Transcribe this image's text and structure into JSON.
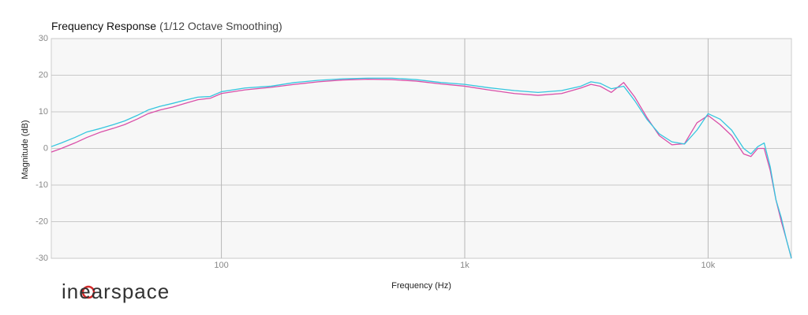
{
  "logo": "inearspace",
  "chart_data": {
    "type": "line",
    "title": "Frequency Response",
    "subtitle": "(1/12 Octave Smoothing)",
    "x_label": "Frequency (Hz)",
    "y_label": "Magnitude (dB)",
    "x_scale": "log",
    "grid": true,
    "xlim": [
      20,
      22000
    ],
    "xticks": [
      {
        "value": 100,
        "label": "100"
      },
      {
        "value": 1000,
        "label": "1k"
      },
      {
        "value": 10000,
        "label": "10k"
      }
    ],
    "ylim": [
      -30,
      30
    ],
    "yticks": [
      -30,
      -20,
      -10,
      0,
      10,
      20,
      30
    ],
    "x": [
      20,
      22,
      25,
      28,
      32,
      36,
      40,
      45,
      50,
      56,
      63,
      71,
      80,
      90,
      100,
      125,
      160,
      200,
      250,
      315,
      400,
      500,
      630,
      800,
      1000,
      1250,
      1600,
      2000,
      2500,
      3000,
      3300,
      3600,
      4000,
      4500,
      5000,
      5600,
      6300,
      7100,
      8000,
      9000,
      10000,
      11200,
      12500,
      14000,
      15000,
      16000,
      17000,
      18000,
      19000,
      20000,
      21000,
      22000
    ],
    "series": [
      {
        "color": "#d94fa8",
        "values": [
          -1,
          0,
          1.5,
          3,
          4.5,
          5.5,
          6.5,
          8,
          9.5,
          10.5,
          11.3,
          12.3,
          13.3,
          13.7,
          15,
          16,
          16.7,
          17.5,
          18.2,
          18.7,
          18.9,
          18.8,
          18.4,
          17.6,
          17,
          16,
          15,
          14.5,
          15,
          16.5,
          17.5,
          17,
          15.3,
          18,
          14,
          8.5,
          3.5,
          1,
          1.3,
          7,
          9,
          6.5,
          3.5,
          -1.5,
          -2.2,
          0,
          0,
          -6,
          -14,
          -20,
          -25,
          -30
        ]
      },
      {
        "color": "#35c6df",
        "values": [
          0.5,
          1.5,
          3,
          4.5,
          5.5,
          6.5,
          7.5,
          9,
          10.5,
          11.5,
          12.3,
          13.2,
          14,
          14.2,
          15.5,
          16.5,
          17,
          18,
          18.6,
          19,
          19.2,
          19.2,
          18.8,
          18,
          17.5,
          16.6,
          15.8,
          15.3,
          15.8,
          17,
          18.2,
          17.8,
          16.3,
          17,
          13,
          8,
          4,
          1.8,
          1.2,
          5,
          9.5,
          8,
          5,
          0,
          -1.5,
          0.5,
          1.5,
          -5,
          -14,
          -19,
          -25,
          -30
        ]
      }
    ]
  }
}
